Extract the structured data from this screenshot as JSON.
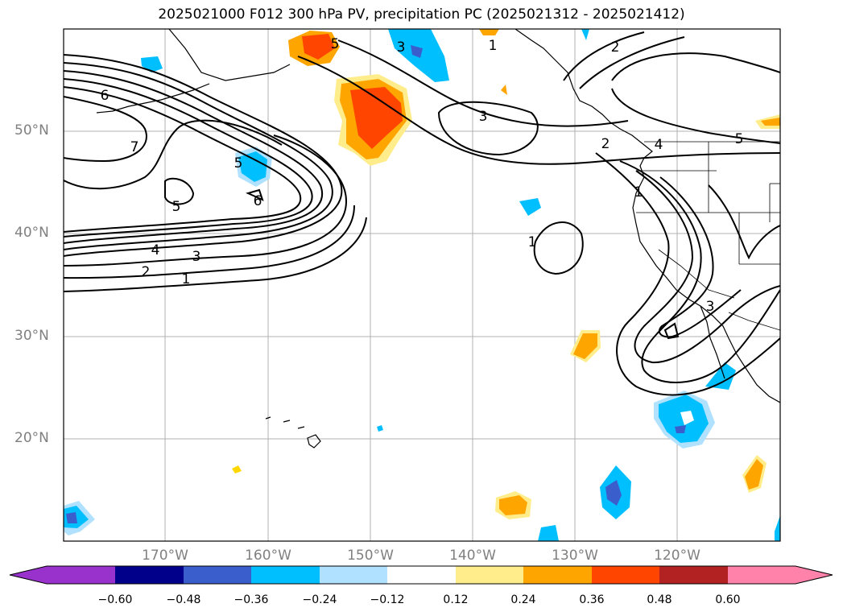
{
  "title": "2025021000 F012 300 hPa PV, precipitation PC (2025021312 - 2025021412)",
  "lat_labels": [
    "50°N",
    "40°N",
    "30°N",
    "20°N"
  ],
  "lon_labels": [
    "170°W",
    "160°W",
    "150°W",
    "140°W",
    "130°W",
    "120°W"
  ],
  "colorbar": {
    "ticks": [
      "−0.60",
      "−0.48",
      "−0.36",
      "−0.24",
      "−0.12",
      "0.12",
      "0.24",
      "0.36",
      "0.48",
      "0.60"
    ],
    "colors": [
      "#9932cc",
      "#00008b",
      "#3a5fcd",
      "#00bfff",
      "#b0e2ff",
      "#ffffff",
      "#ffec8b",
      "#ffa500",
      "#ff4500",
      "#b22222",
      "#ff82ab"
    ]
  },
  "contour_labels": [
    "6",
    "7",
    "5",
    "4",
    "3",
    "2",
    "1",
    "5",
    "6",
    "5",
    "3",
    "3",
    "1",
    "2",
    "2",
    "4",
    "5",
    "1",
    "1",
    "3"
  ]
}
